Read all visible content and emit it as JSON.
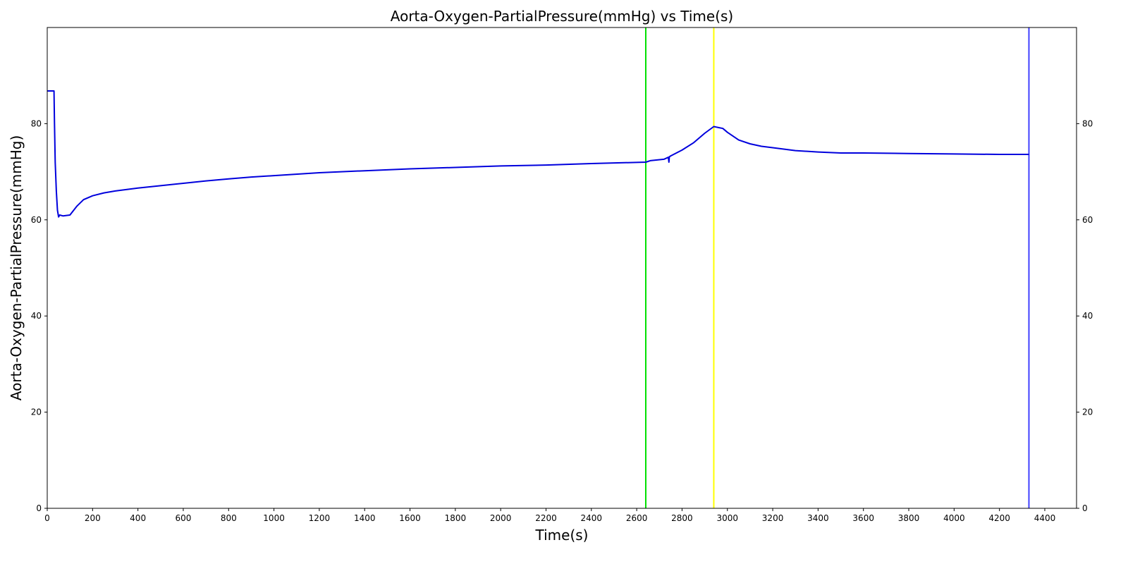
{
  "chart_data": {
    "type": "line",
    "title": "Aorta-Oxygen-PartialPressure(mmHg) vs Time(s)",
    "xlabel": "Time(s)",
    "ylabel": "Aorta-Oxygen-PartialPressure(mmHg)",
    "xlim": [
      0,
      4540
    ],
    "ylim": [
      0,
      100
    ],
    "x_ticks": [
      0,
      200,
      400,
      600,
      800,
      1000,
      1200,
      1400,
      1600,
      1800,
      2000,
      2200,
      2400,
      2600,
      2800,
      3000,
      3200,
      3400,
      3600,
      3800,
      4000,
      4200,
      4400
    ],
    "y_ticks": [
      0,
      20,
      40,
      60,
      80
    ],
    "y_ticks_right": [
      0,
      20,
      40,
      60,
      80
    ],
    "grid": false,
    "legend": "none",
    "series": [
      {
        "color": "#0000dd",
        "x": [
          0,
          30,
          32,
          35,
          40,
          45,
          50,
          55,
          70,
          100,
          130,
          160,
          200,
          250,
          300,
          400,
          500,
          600,
          700,
          800,
          900,
          1000,
          1200,
          1400,
          1600,
          1800,
          2000,
          2200,
          2400,
          2640,
          2660,
          2720,
          2740,
          2742,
          2744,
          2750,
          2800,
          2850,
          2900,
          2940,
          2960,
          2980,
          3000,
          3050,
          3100,
          3150,
          3200,
          3300,
          3400,
          3500,
          3600,
          3800,
          4000,
          4200,
          4330
        ],
        "y": [
          86.8,
          86.8,
          80.0,
          72.0,
          66.0,
          62.0,
          60.6,
          61.0,
          60.8,
          61.0,
          62.8,
          64.2,
          65.0,
          65.6,
          66.0,
          66.6,
          67.1,
          67.6,
          68.1,
          68.5,
          68.9,
          69.2,
          69.8,
          70.2,
          70.6,
          70.9,
          71.2,
          71.4,
          71.7,
          72.0,
          72.3,
          72.6,
          73.0,
          72.0,
          73.1,
          73.3,
          74.5,
          76.0,
          78.0,
          79.4,
          79.2,
          79.0,
          78.2,
          76.6,
          75.8,
          75.3,
          75.0,
          74.4,
          74.1,
          73.9,
          73.9,
          73.8,
          73.7,
          73.6,
          73.6
        ]
      }
    ],
    "vertical_lines": [
      {
        "x": 2640,
        "color": "#00e000"
      },
      {
        "x": 2940,
        "color": "#ffff00"
      },
      {
        "x": 4330,
        "color": "#4040ff"
      }
    ]
  }
}
